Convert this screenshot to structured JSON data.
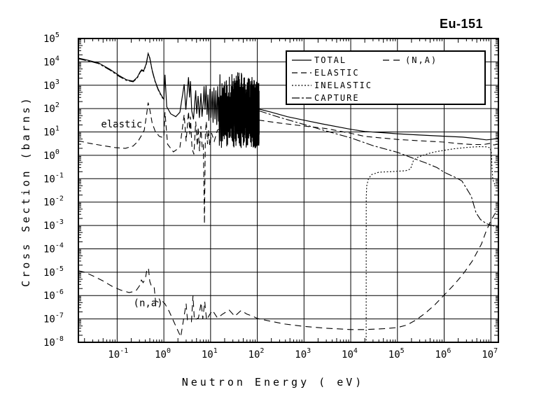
{
  "title": "Eu-151",
  "legend": {
    "position": "top-inside"
  },
  "chart_data": {
    "type": "line",
    "title": "Eu-151",
    "xlabel": "Neutron Energy ( eV)",
    "ylabel": "Cross Section (barns)",
    "x_scale": "log",
    "y_scale": "log",
    "xlim": [
      0.0148,
      14500000
    ],
    "ylim": [
      1e-08,
      100000
    ],
    "grid": "decade-gridlines-on",
    "x_tick_exponents": [
      -1,
      0,
      1,
      2,
      3,
      4,
      5,
      6,
      7
    ],
    "y_tick_exponents": [
      5,
      4,
      3,
      2,
      1,
      0,
      -1,
      -2,
      -3,
      -4,
      -5,
      -6,
      -7,
      -8
    ],
    "tick_base": "10",
    "annotations": [
      {
        "text": "elastic",
        "E": 0.125,
        "sigma": 22
      },
      {
        "text": "(n,a)",
        "E": 0.46,
        "sigma": 5e-07
      }
    ],
    "series": [
      {
        "name": "TOTAL",
        "line": "solid",
        "dash": null,
        "points_low": [
          [
            0.0148,
            14500
          ],
          [
            0.025,
            11500
          ],
          [
            0.04,
            9000
          ],
          [
            0.07,
            4800
          ],
          [
            0.11,
            2600
          ],
          [
            0.16,
            1700
          ],
          [
            0.22,
            1500
          ],
          [
            0.27,
            2200
          ],
          [
            0.31,
            3800
          ],
          [
            0.335,
            4600
          ],
          [
            0.37,
            4200
          ],
          [
            0.42,
            8500
          ],
          [
            0.46,
            23000
          ],
          [
            0.5,
            15000
          ],
          [
            0.56,
            4500
          ],
          [
            0.65,
            1500
          ],
          [
            0.75,
            700
          ],
          [
            0.85,
            420
          ],
          [
            0.95,
            290
          ],
          [
            1.0,
            250
          ],
          [
            1.055,
            2800
          ],
          [
            1.15,
            120
          ],
          [
            1.4,
            60
          ],
          [
            1.8,
            45
          ],
          [
            2.2,
            70
          ],
          [
            2.72,
            1100
          ],
          [
            2.95,
            90
          ],
          [
            3.37,
            2200
          ],
          [
            3.55,
            300
          ],
          [
            3.71,
            1500
          ],
          [
            3.95,
            80
          ],
          [
            4.3,
            35
          ],
          [
            4.8,
            600
          ],
          [
            5.05,
            60
          ],
          [
            5.4,
            350
          ],
          [
            5.75,
            40
          ],
          [
            6.2,
            450
          ],
          [
            6.55,
            45
          ],
          [
            7.0,
            200
          ],
          [
            7.25,
            900
          ],
          [
            7.6,
            90
          ],
          [
            8.0,
            950
          ],
          [
            8.4,
            55
          ],
          [
            8.8,
            400
          ],
          [
            9.2,
            30
          ],
          [
            9.7,
            700
          ],
          [
            10.2,
            40
          ],
          [
            10.8,
            550
          ],
          [
            11.3,
            25
          ],
          [
            11.8,
            800
          ],
          [
            12.4,
            35
          ],
          [
            13.0,
            600
          ],
          [
            13.6,
            20
          ],
          [
            14.2,
            900
          ],
          [
            14.8,
            28
          ]
        ],
        "resonance_band": {
          "e_min": 15,
          "e_max": 110,
          "delta_e": 0.85,
          "top_log_min": 2.5,
          "top_log_max": 3.55,
          "bot_log_min": 0.3,
          "bot_log_max": 1.3,
          "taper_start_log_e": 1.78,
          "taper_rate": 1.6
        },
        "points_smooth": [
          [
            110,
            95
          ],
          [
            200,
            70
          ],
          [
            440,
            45
          ],
          [
            1000,
            32
          ],
          [
            2500,
            22
          ],
          [
            10000,
            13
          ],
          [
            20000,
            10.5
          ],
          [
            50000,
            9.3
          ],
          [
            100000,
            8.4
          ],
          [
            300000,
            7.4
          ],
          [
            1000000,
            6.6
          ],
          [
            2500000,
            6.0
          ],
          [
            5000000,
            5.2
          ],
          [
            8000000,
            4.6
          ],
          [
            10000000,
            4.8
          ],
          [
            14500000,
            5.4
          ]
        ]
      },
      {
        "name": "ELASTIC",
        "line": "long-dash",
        "dash": "8,5",
        "points": [
          [
            0.0148,
            4.2
          ],
          [
            0.025,
            3.3
          ],
          [
            0.05,
            2.6
          ],
          [
            0.09,
            2.15
          ],
          [
            0.15,
            2.0
          ],
          [
            0.22,
            2.5
          ],
          [
            0.28,
            4
          ],
          [
            0.33,
            7
          ],
          [
            0.38,
            12
          ],
          [
            0.43,
            60
          ],
          [
            0.46,
            180
          ],
          [
            0.5,
            90
          ],
          [
            0.56,
            25
          ],
          [
            0.65,
            11
          ],
          [
            0.8,
            6.5
          ],
          [
            0.95,
            5.8
          ],
          [
            1.0,
            6
          ],
          [
            1.055,
            70
          ],
          [
            1.2,
            3
          ],
          [
            1.6,
            1.4
          ],
          [
            2.2,
            2.2
          ],
          [
            2.72,
            55
          ],
          [
            3.0,
            4
          ],
          [
            3.37,
            75
          ],
          [
            3.6,
            8
          ],
          [
            3.71,
            45
          ],
          [
            4.0,
            2
          ],
          [
            4.4,
            1.1
          ],
          [
            4.8,
            28
          ],
          [
            5.2,
            2.5
          ],
          [
            5.4,
            16
          ],
          [
            5.8,
            1.5
          ],
          [
            6.2,
            18
          ],
          [
            6.6,
            2.2
          ],
          [
            7.0,
            3
          ],
          [
            7.4,
            0.0012
          ],
          [
            7.75,
            8
          ],
          [
            8.1,
            28
          ],
          [
            8.6,
            3
          ],
          [
            9.0,
            12
          ],
          [
            9.6,
            2.6
          ],
          [
            10.5,
            9
          ],
          [
            12,
            4
          ],
          [
            14,
            12
          ],
          [
            20,
            16
          ],
          [
            60,
            22
          ],
          [
            110,
            32
          ],
          [
            300,
            24
          ],
          [
            1000,
            18
          ],
          [
            3000,
            14
          ],
          [
            10000,
            8.8
          ],
          [
            20000,
            6.5
          ],
          [
            100000,
            4.8
          ],
          [
            300000,
            4.2
          ],
          [
            1000000,
            3.7
          ],
          [
            2000000,
            3.2
          ],
          [
            4000000,
            2.9
          ],
          [
            7000000,
            2.9
          ],
          [
            10000000,
            3.3
          ],
          [
            11500000,
            2.8
          ],
          [
            14500000,
            3.0
          ]
        ]
      },
      {
        "name": "INELASTIC",
        "line": "short-dash",
        "dash": "2,2.5",
        "points": [
          [
            21400,
            1.2e-08
          ],
          [
            21450,
            0.015
          ],
          [
            22000,
            0.05
          ],
          [
            24000,
            0.1
          ],
          [
            28000,
            0.15
          ],
          [
            40000,
            0.19
          ],
          [
            70000,
            0.2
          ],
          [
            150000,
            0.22
          ],
          [
            190000,
            0.26
          ],
          [
            220000,
            0.6
          ],
          [
            260000,
            0.8
          ],
          [
            350000,
            1.0
          ],
          [
            500000,
            1.25
          ],
          [
            700000,
            1.45
          ],
          [
            1000000,
            1.65
          ],
          [
            1600000,
            1.9
          ],
          [
            2500000,
            2.1
          ],
          [
            4000000,
            2.28
          ],
          [
            6000000,
            2.35
          ],
          [
            8000000,
            2.3
          ],
          [
            9700000,
            2.1
          ],
          [
            10300000,
            1.2
          ],
          [
            10600000,
            0.3
          ],
          [
            11000000,
            0.09
          ],
          [
            12000000,
            0.06
          ],
          [
            14200000,
            0.045
          ]
        ]
      },
      {
        "name": "CAPTURE",
        "line": "dash-dot",
        "dash": "11,3,3,3",
        "segments": [
          [
            [
              0.0148,
              13500
            ],
            [
              0.025,
              10700
            ],
            [
              0.04,
              8400
            ],
            [
              0.07,
              4450
            ],
            [
              0.11,
              2400
            ],
            [
              0.16,
              1580
            ],
            [
              0.22,
              1400
            ],
            [
              0.27,
              2050
            ],
            [
              0.31,
              3550
            ],
            [
              0.335,
              4300
            ],
            [
              0.37,
              3900
            ],
            [
              0.42,
              7900
            ],
            [
              0.46,
              21500
            ],
            [
              0.5,
              14000
            ],
            [
              0.56,
              4200
            ],
            [
              0.65,
              1400
            ],
            [
              0.75,
              650
            ],
            [
              0.85,
              390
            ],
            [
              0.95,
              270
            ]
          ],
          [
            [
              110,
              80
            ],
            [
              300,
              42
            ],
            [
              1000,
              21
            ],
            [
              3000,
              11
            ],
            [
              10000,
              5.6
            ],
            [
              30000,
              2.6
            ],
            [
              100000,
              1.35
            ],
            [
              200000,
              0.8
            ],
            [
              400000,
              0.48
            ],
            [
              700000,
              0.3
            ],
            [
              1000000,
              0.19
            ],
            [
              1800000,
              0.11
            ],
            [
              2400000,
              0.08
            ],
            [
              3800000,
              0.018
            ],
            [
              4800000,
              0.0035
            ],
            [
              6000000,
              0.0018
            ],
            [
              8000000,
              0.0012
            ],
            [
              10500000,
              0.001
            ],
            [
              14500000,
              0.00085
            ]
          ]
        ]
      },
      {
        "name": "(N,A)",
        "line": "long-dash",
        "dash": "9,6",
        "points": [
          [
            0.0148,
            1.15e-05
          ],
          [
            0.02,
            1e-05
          ],
          [
            0.03,
            7e-06
          ],
          [
            0.05,
            4.2e-06
          ],
          [
            0.08,
            2.4e-06
          ],
          [
            0.12,
            1.7e-06
          ],
          [
            0.18,
            1.35e-06
          ],
          [
            0.25,
            1.55e-06
          ],
          [
            0.3,
            2.6e-06
          ],
          [
            0.33,
            4.6e-06
          ],
          [
            0.36,
            3.6e-06
          ],
          [
            0.4,
            5e-06
          ],
          [
            0.44,
            1.5e-05
          ],
          [
            0.47,
            1.35e-05
          ],
          [
            0.5,
            4e-06
          ],
          [
            0.54,
            2.6e-06
          ],
          [
            0.62,
            2.4e-06
          ],
          [
            0.66,
            6e-07
          ],
          [
            0.8,
            5e-07
          ],
          [
            0.95,
            5.5e-07
          ],
          [
            1.05,
            4.5e-07
          ],
          [
            1.3,
            2.1e-07
          ],
          [
            1.8,
            5e-08
          ],
          [
            2.3,
            1.7e-08
          ],
          [
            2.6,
            8e-08
          ],
          [
            3.0,
            4.5e-07
          ],
          [
            3.2,
            9e-08
          ],
          [
            3.9,
            7.5e-08
          ],
          [
            4.2,
            1e-06
          ],
          [
            4.5,
            9e-08
          ],
          [
            5.5,
            1.1e-07
          ],
          [
            6.3,
            5e-07
          ],
          [
            6.8,
            1e-07
          ],
          [
            7.5,
            5.5e-07
          ],
          [
            8.2,
            9e-08
          ],
          [
            9.5,
            1.5e-07
          ],
          [
            11,
            2.3e-07
          ],
          [
            14,
            1.1e-07
          ],
          [
            18,
            1.6e-07
          ],
          [
            25,
            2.4e-07
          ],
          [
            33,
            1.3e-07
          ],
          [
            45,
            2.3e-07
          ],
          [
            60,
            1.6e-07
          ],
          [
            80,
            1.3e-07
          ],
          [
            100,
            1.05e-07
          ],
          [
            200,
            7.8e-08
          ],
          [
            400,
            6e-08
          ],
          [
            1000,
            4.8e-08
          ],
          [
            3000,
            4e-08
          ],
          [
            10000,
            3.5e-08
          ],
          [
            20000,
            3.5e-08
          ],
          [
            50000,
            3.8e-08
          ],
          [
            100000,
            4.3e-08
          ],
          [
            160000,
            5.5e-08
          ],
          [
            250000,
            9e-08
          ],
          [
            400000,
            1.8e-07
          ],
          [
            630000,
            4e-07
          ],
          [
            1000000,
            1.05e-06
          ],
          [
            1600000,
            2.8e-06
          ],
          [
            2500000,
            8e-06
          ],
          [
            4000000,
            3e-05
          ],
          [
            6300000,
            0.00016
          ],
          [
            8000000,
            0.0006
          ],
          [
            10000000,
            0.0016
          ],
          [
            12000000,
            0.003
          ],
          [
            14000000,
            0.0045
          ]
        ]
      }
    ]
  }
}
